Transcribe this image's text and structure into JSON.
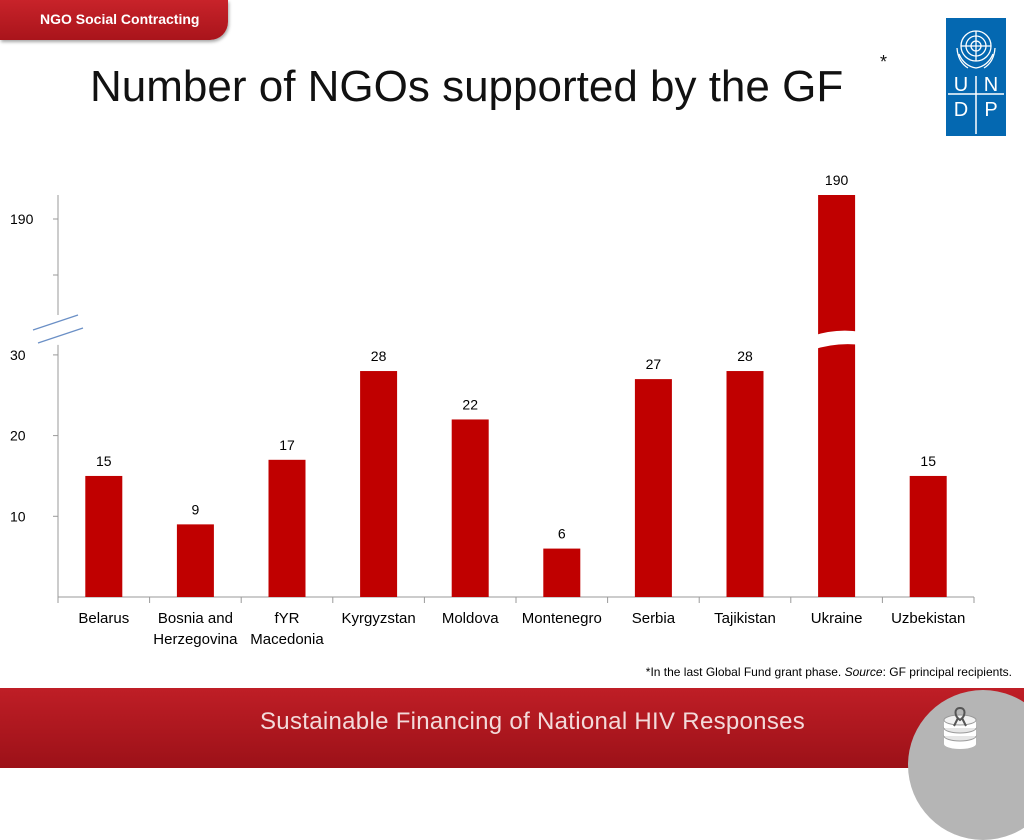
{
  "header": {
    "tab_label": "NGO Social Contracting",
    "title": "Number of NGOs supported by the GF",
    "title_asterisk": "*",
    "logo_letters": [
      "U",
      "N",
      "D",
      "P"
    ]
  },
  "chart_data": {
    "type": "bar",
    "title": "",
    "xlabel": "",
    "ylabel": "",
    "categories": [
      "Belarus",
      "Bosnia and Herzegovina",
      "fYR Macedonia",
      "Kyrgyzstan",
      "Moldova",
      "Montenegro",
      "Serbia",
      "Tajikistan",
      "Ukraine",
      "Uzbekistan"
    ],
    "category_lines": [
      [
        "Belarus"
      ],
      [
        "Bosnia and",
        "Herzegovina"
      ],
      [
        "fYR",
        "Macedonia"
      ],
      [
        "Kyrgyzstan"
      ],
      [
        "Moldova"
      ],
      [
        "Montenegro"
      ],
      [
        "Serbia"
      ],
      [
        "Tajikistan"
      ],
      [
        "Ukraine"
      ],
      [
        "Uzbekistan"
      ]
    ],
    "series": [
      {
        "values": [
          15,
          9,
          17,
          28,
          22,
          6,
          27,
          28,
          190,
          15
        ]
      }
    ],
    "data_labels": [
      "15",
      "9",
      "17",
      "28",
      "22",
      "6",
      "27",
      "28",
      "190",
      "15"
    ],
    "y_ticks": [
      10,
      20,
      30,
      190
    ],
    "y_tick_labels": [
      "10",
      "20",
      "30",
      "190"
    ],
    "ylim": [
      0,
      190
    ],
    "axis_break": true,
    "grid": false,
    "legend": false,
    "bar_color": "#c00000"
  },
  "footnote": {
    "prefix": "*In the last Global Fund grant phase. ",
    "source_label": "Source",
    "suffix": ": GF principal recipients."
  },
  "footer": {
    "text": "Sustainable Financing of National HIV Responses"
  },
  "colors": {
    "brand_red": "#c8232a",
    "undp_blue": "#0468b1",
    "bar": "#c00000"
  }
}
